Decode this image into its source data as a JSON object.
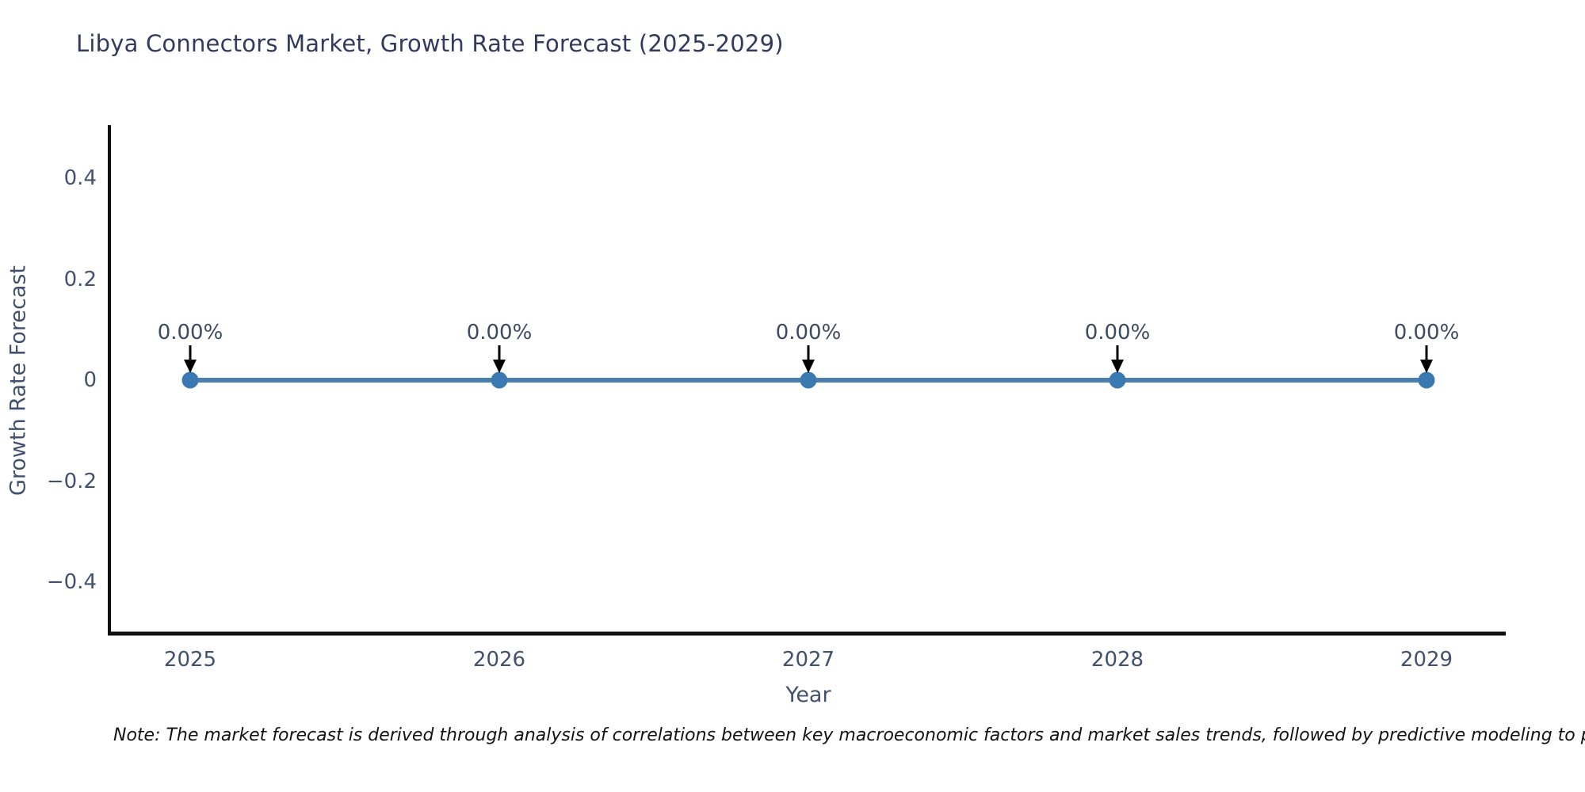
{
  "note": "Note: The market forecast is derived through analysis of correlations between key macroeconomic factors and market sales trends, followed by predictive modeling to project future sa",
  "chart_data": {
    "type": "line",
    "title": "Libya Connectors Market, Growth Rate Forecast (2025-2029)",
    "xlabel": "Year",
    "ylabel": "Growth Rate Forecast",
    "categories": [
      "2025",
      "2026",
      "2027",
      "2028",
      "2029"
    ],
    "series": [
      {
        "name": "Growth Rate Forecast",
        "values": [
          0,
          0,
          0,
          0,
          0
        ],
        "point_labels": [
          "0.00%",
          "0.00%",
          "0.00%",
          "0.00%",
          "0.00%"
        ]
      }
    ],
    "yticks": [
      {
        "value": 0.4,
        "label": "0.4"
      },
      {
        "value": 0.2,
        "label": "0.2"
      },
      {
        "value": 0,
        "label": "0"
      },
      {
        "value": -0.2,
        "label": "−0.2"
      },
      {
        "value": -0.4,
        "label": "−0.4"
      }
    ],
    "ylim": [
      -0.5,
      0.5
    ],
    "grid": false,
    "legend": "none",
    "colors": {
      "line": "#4a80b0",
      "marker": "#3a79b2",
      "axis": "#111111",
      "tick_label": "#42516d",
      "title": "#333a5e",
      "annotation_arrow": "#000000"
    }
  }
}
